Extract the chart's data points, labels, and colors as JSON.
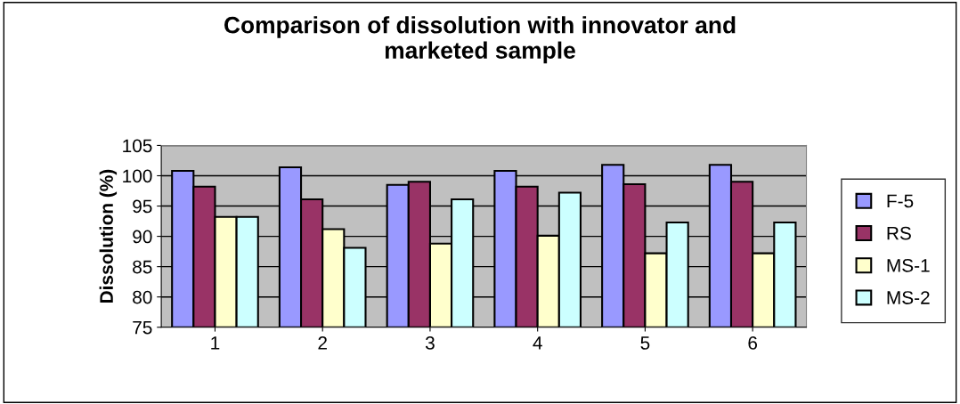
{
  "chart_data": {
    "type": "bar",
    "title": "Comparison of dissolution with innovator and\nmarketed sample",
    "ylabel": "Dissolution (%)",
    "categories": [
      "1",
      "2",
      "3",
      "4",
      "5",
      "6"
    ],
    "series": [
      {
        "name": "F-5",
        "color": "#9999ff",
        "values": [
          100.8,
          101.4,
          98.5,
          100.8,
          101.8,
          101.8
        ]
      },
      {
        "name": "RS",
        "color": "#993366",
        "values": [
          98.2,
          96.1,
          99.0,
          98.2,
          98.6,
          99.0
        ]
      },
      {
        "name": "MS-1",
        "color": "#ffffcc",
        "values": [
          93.2,
          91.2,
          88.8,
          90.1,
          87.2,
          87.2
        ]
      },
      {
        "name": "MS-2",
        "color": "#ccffff",
        "values": [
          93.2,
          88.1,
          96.1,
          97.2,
          92.3,
          92.3
        ]
      }
    ],
    "ylim": [
      75,
      105
    ],
    "yticks": [
      75,
      80,
      85,
      90,
      95,
      100,
      105
    ],
    "grid": "y",
    "legend": "right"
  }
}
